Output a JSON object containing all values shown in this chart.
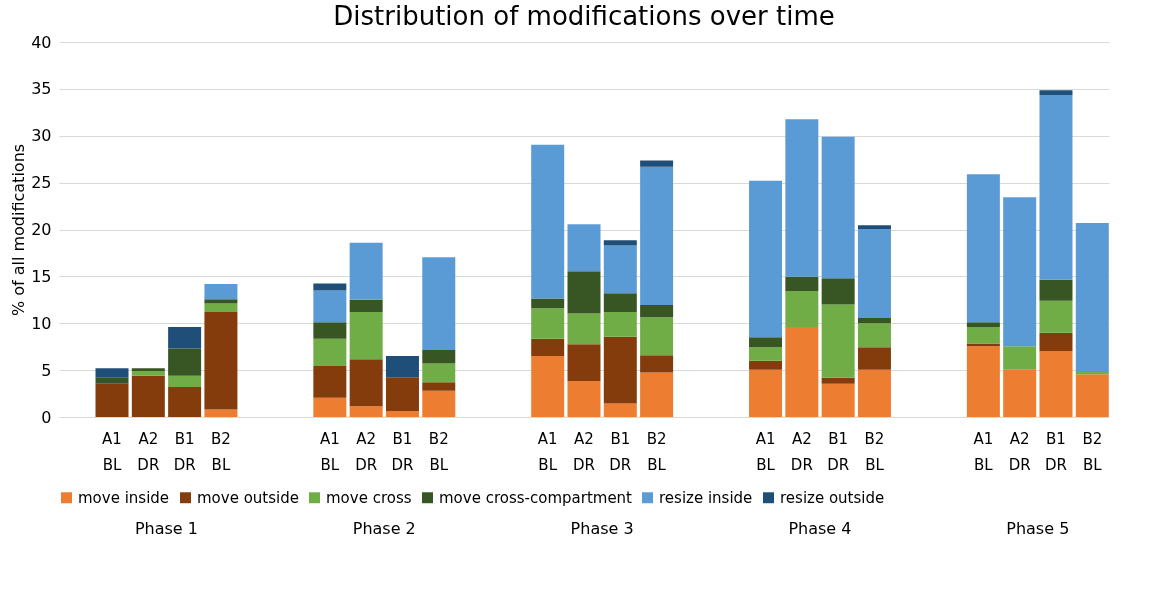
{
  "chart_data": {
    "type": "bar",
    "stacked": true,
    "title": "Distribution of modifications over time",
    "ylabel": "% of all modifications",
    "categories": [
      "A1\nBL",
      "A2\nDR",
      "B1\nDR",
      "B2\nBL",
      "A1\nBL",
      "A2\nDR",
      "B1\nDR",
      "B2\nBL",
      "A1\nBL",
      "A2\nDR",
      "B1\nDR",
      "B2\nBL",
      "A1\nBL",
      "A2\nDR",
      "B1\nDR",
      "B2\nBL",
      "A1\nBL",
      "A2\nDR",
      "B1\nDR",
      "B2\nBL"
    ],
    "annotations": [
      "Phase 1",
      "Phase 2",
      "Phase 3",
      "Phase 4",
      "Phase 5"
    ],
    "series": [
      {
        "name": "move inside",
        "color": "#ed7d31",
        "values": [
          0,
          0,
          0,
          0.8,
          2.05,
          1.15,
          0.65,
          2.8,
          6.5,
          3.85,
          1.45,
          4.75,
          5.05,
          9.6,
          3.55,
          5.05,
          7.55,
          5.05,
          7.05,
          4.55
        ]
      },
      {
        "name": "move outside",
        "color": "#843c0c",
        "values": [
          3.55,
          4.4,
          3.2,
          10.4,
          3.4,
          5.0,
          3.6,
          0.9,
          1.85,
          3.9,
          7.1,
          1.85,
          0.95,
          0,
          0.65,
          2.4,
          0.3,
          0,
          1.95,
          0
        ]
      },
      {
        "name": "move cross",
        "color": "#70ad47",
        "values": [
          0,
          0.5,
          1.2,
          0.9,
          2.9,
          5.05,
          0,
          2.0,
          3.25,
          3.3,
          2.65,
          4.05,
          1.45,
          3.85,
          7.8,
          2.55,
          1.75,
          2.5,
          3.4,
          0.25
        ]
      },
      {
        "name": "move cross-compartment",
        "color": "#375623",
        "values": [
          0.65,
          0.3,
          2.9,
          0.45,
          1.75,
          1.3,
          0,
          1.45,
          1.05,
          4.5,
          2.0,
          1.3,
          1.05,
          1.5,
          2.8,
          0.55,
          0.5,
          0,
          2.25,
          0
        ]
      },
      {
        "name": "resize inside",
        "color": "#5b9bd5",
        "values": [
          0,
          0,
          0,
          1.65,
          3.4,
          6.1,
          0,
          9.9,
          16.4,
          5.0,
          5.1,
          14.75,
          16.7,
          16.8,
          15.1,
          9.5,
          15.8,
          15.9,
          19.7,
          15.9
        ]
      },
      {
        "name": "resize outside",
        "color": "#1f4e79",
        "values": [
          1.0,
          0,
          2.3,
          0,
          0.75,
          0,
          2.25,
          0,
          0,
          0,
          0.55,
          0.65,
          0,
          0,
          0,
          0.4,
          0,
          0,
          0.5,
          0
        ]
      }
    ],
    "ylim": [
      0,
      40
    ],
    "yticks": [
      0,
      5,
      10,
      15,
      20,
      25,
      30,
      35,
      40
    ],
    "grid": "y",
    "legend": "bottom"
  }
}
